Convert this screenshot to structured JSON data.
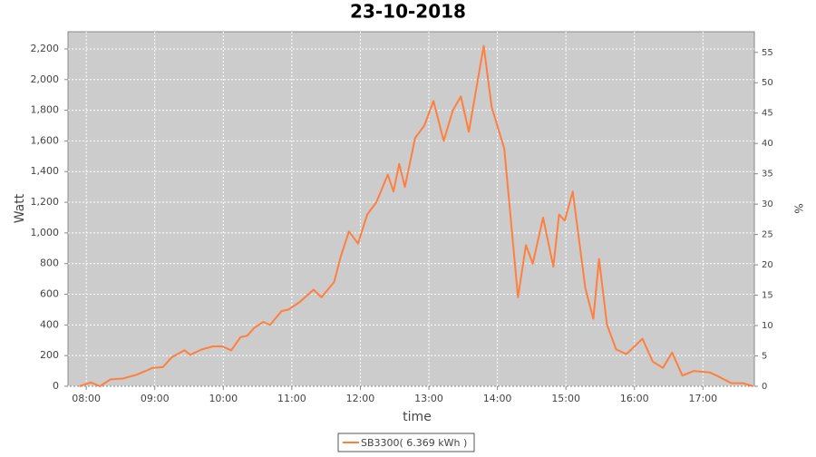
{
  "chart_data": {
    "type": "line",
    "title": "23-10-2018",
    "x_label": "time",
    "y_label": "Watt",
    "y2_label": "%",
    "x": [
      "07:54",
      "08:04",
      "08:12",
      "08:21",
      "08:32",
      "08:44",
      "08:52",
      "08:58",
      "09:07",
      "09:15",
      "09:26",
      "09:31",
      "09:41",
      "09:51",
      "09:59",
      "10:07",
      "10:15",
      "10:21",
      "10:27",
      "10:35",
      "10:41",
      "10:51",
      "10:57",
      "11:07",
      "11:19",
      "11:26",
      "11:37",
      "11:43",
      "11:50",
      "11:58",
      "12:06",
      "12:14",
      "12:24",
      "12:29",
      "12:34",
      "12:39",
      "12:48",
      "12:56",
      "13:04",
      "13:13",
      "13:21",
      "13:28",
      "13:35",
      "13:48",
      "13:55",
      "14:06",
      "14:18",
      "14:25",
      "14:31",
      "14:40",
      "14:49",
      "14:54",
      "14:59",
      "15:06",
      "15:17",
      "15:24",
      "15:29",
      "15:36",
      "15:44",
      "15:53",
      "16:07",
      "16:16",
      "16:25",
      "16:33",
      "16:42",
      "16:52",
      "17:06",
      "17:12",
      "17:25",
      "17:35",
      "17:44"
    ],
    "series": [
      {
        "name": "SB3300( 6.369 kWh )",
        "color": "#ff7f3f",
        "values": [
          0,
          25,
          0,
          45,
          50,
          75,
          100,
          120,
          125,
          190,
          235,
          205,
          240,
          260,
          260,
          235,
          320,
          330,
          380,
          420,
          400,
          490,
          500,
          550,
          630,
          580,
          680,
          850,
          1010,
          930,
          1120,
          1200,
          1380,
          1270,
          1450,
          1300,
          1620,
          1700,
          1860,
          1600,
          1800,
          1890,
          1660,
          2220,
          1820,
          1550,
          580,
          920,
          800,
          1100,
          780,
          1120,
          1080,
          1270,
          640,
          440,
          830,
          400,
          240,
          210,
          310,
          160,
          120,
          220,
          70,
          100,
          90,
          70,
          20,
          20,
          0
        ]
      }
    ],
    "xlim": [
      "07:44",
      "17:45"
    ],
    "xticks": [
      "08:00",
      "09:00",
      "10:00",
      "11:00",
      "12:00",
      "13:00",
      "14:00",
      "15:00",
      "16:00",
      "17:00"
    ],
    "ylim": [
      0,
      2312
    ],
    "yticks": [
      0,
      200,
      400,
      600,
      800,
      {
        "value": 1000,
        "label": "1,000"
      },
      {
        "value": 1200,
        "label": "1,200"
      },
      {
        "value": 1400,
        "label": "1,400"
      },
      {
        "value": 1600,
        "label": "1,600"
      },
      {
        "value": 1800,
        "label": "1,800"
      },
      {
        "value": 2000,
        "label": "2,000"
      },
      {
        "value": 2200,
        "label": "2,200"
      }
    ],
    "y2lim": [
      0,
      58.4
    ],
    "y2ticks": [
      0,
      5,
      10,
      15,
      20,
      25,
      30,
      35,
      40,
      45,
      50,
      55
    ],
    "grid": true,
    "legend": "bottom"
  }
}
